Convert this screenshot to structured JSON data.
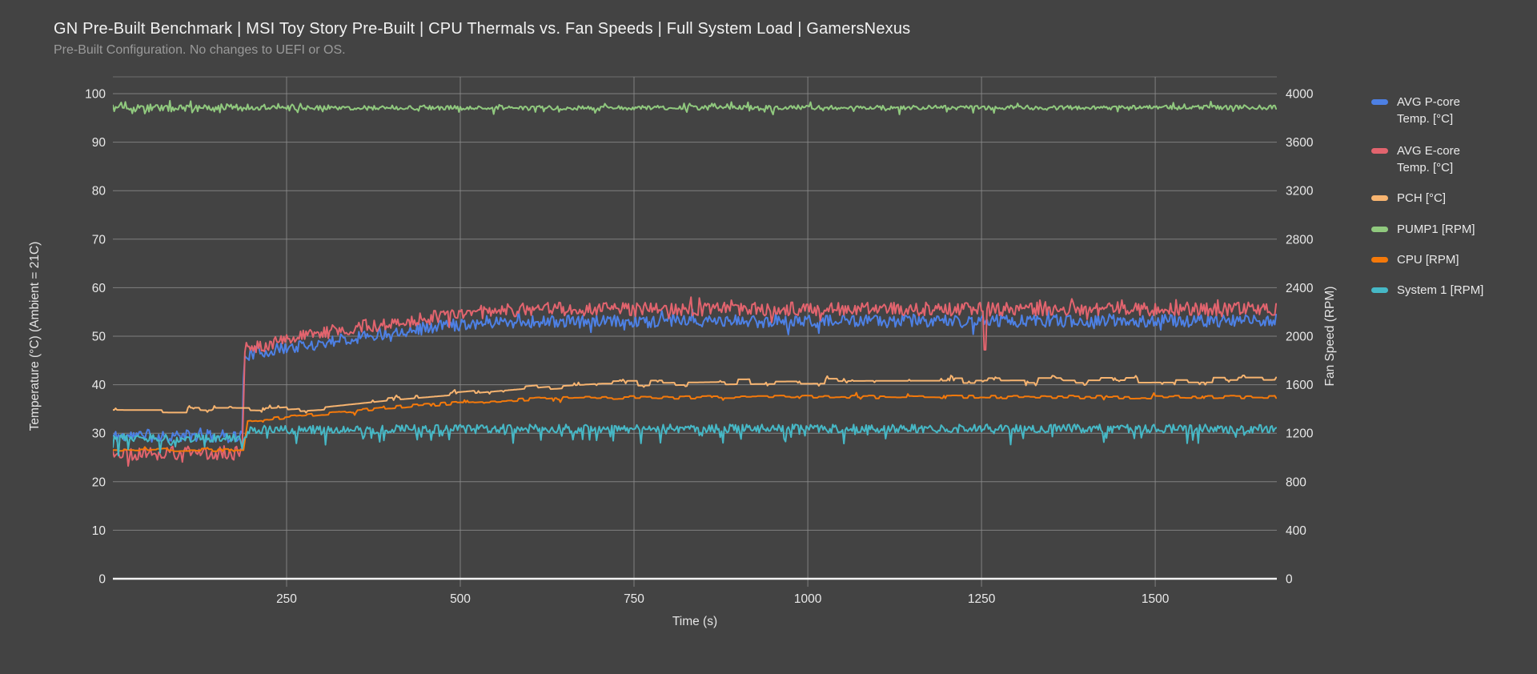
{
  "page": {
    "background_color": "#434343"
  },
  "chart_data": {
    "type": "line",
    "title": "GN Pre-Built Benchmark | MSI Toy Story Pre-Built | CPU Thermals vs. Fan Speeds | Full System Load | GamersNexus",
    "subtitle": "Pre-Built Configuration. No changes to UEFI or OS.",
    "xlabel": "Time (s)",
    "ylabel_left": "Temperature (°C) (Ambient = 21C)",
    "ylabel_right": "Fan Speed (RPM)",
    "x_range": [
      0,
      1675
    ],
    "x_ticks": [
      250,
      500,
      750,
      1000,
      1250,
      1500
    ],
    "y_left_range": [
      0,
      100
    ],
    "y_left_ticks": [
      0,
      10,
      20,
      30,
      40,
      50,
      60,
      70,
      80,
      90,
      100
    ],
    "y_right_range": [
      0,
      4000
    ],
    "y_right_ticks": [
      0,
      400,
      800,
      1200,
      1600,
      2000,
      2400,
      2800,
      3200,
      3600,
      4000
    ],
    "grid": true,
    "legend_position": "right",
    "style": {
      "grid_color": "#8f8f8f",
      "axis_line_color": "#f2f2f2",
      "tick_label_color": "#e9e9e9",
      "axis_title_color": "#e5e5e5"
    },
    "series": [
      {
        "name": "AVG P-core Temp. [°C]",
        "color": "#4d80e4",
        "axis": "left",
        "keypoints": [
          [
            0,
            29.4
          ],
          [
            186,
            29.4
          ],
          [
            189,
            46.2
          ],
          [
            240,
            47.3
          ],
          [
            300,
            48.6
          ],
          [
            360,
            50.0
          ],
          [
            420,
            51.2
          ],
          [
            480,
            52.2
          ],
          [
            540,
            53.0
          ],
          [
            620,
            53.0
          ],
          [
            1674,
            53.2
          ]
        ],
        "noise": 1.3,
        "spike_prob": 0.06,
        "spike_amp": 1.6,
        "seed": 11
      },
      {
        "name": "AVG E-core Temp. [°C]",
        "color": "#e2646e",
        "axis": "left",
        "keypoints": [
          [
            0,
            25.9
          ],
          [
            187,
            25.9
          ],
          [
            189,
            47.3
          ],
          [
            240,
            49.0
          ],
          [
            300,
            50.6
          ],
          [
            360,
            52.0
          ],
          [
            420,
            53.1
          ],
          [
            480,
            54.2
          ],
          [
            540,
            55.1
          ],
          [
            620,
            55.6
          ],
          [
            1674,
            55.6
          ]
        ],
        "noise": 1.4,
        "spike_prob": 0.06,
        "spike_amp": 1.7,
        "seed": 22,
        "events": [
          [
            1255,
            47.2
          ]
        ]
      },
      {
        "name": "PCH [°C]",
        "color": "#f7b470",
        "axis": "left",
        "keypoints": [
          [
            0,
            34.8
          ],
          [
            230,
            34.7
          ],
          [
            300,
            35.3
          ],
          [
            400,
            36.8
          ],
          [
            500,
            38.0
          ],
          [
            620,
            39.5
          ],
          [
            700,
            40.2
          ],
          [
            900,
            40.6
          ],
          [
            1100,
            40.8
          ],
          [
            1674,
            41.0
          ]
        ],
        "noise": 0.45,
        "hold": 9,
        "quantize": true,
        "spike_prob": 0.08,
        "spike_amp": 0.55,
        "seed": 33
      },
      {
        "name": "PUMP1 [RPM]",
        "color": "#90c97e",
        "axis": "right",
        "keypoints": [
          [
            0,
            3882
          ],
          [
            1674,
            3886
          ]
        ],
        "noise": 18,
        "spike_prob": 0.1,
        "spike_amp": 40,
        "seed": 44,
        "idle_until": 190,
        "idle_scale": 1.8
      },
      {
        "name": "CPU [RPM]",
        "color": "#f5790a",
        "axis": "right",
        "keypoints": [
          [
            0,
            1062
          ],
          [
            188,
            1062
          ],
          [
            194,
            1300
          ],
          [
            300,
            1360
          ],
          [
            420,
            1420
          ],
          [
            520,
            1460
          ],
          [
            650,
            1492
          ],
          [
            1000,
            1500
          ],
          [
            1674,
            1497
          ]
        ],
        "noise": 13,
        "hold": 4,
        "spike_prob": 0.04,
        "spike_amp": 24,
        "seed": 55
      },
      {
        "name": "System 1 [RPM]",
        "color": "#46b8c6",
        "axis": "right",
        "keypoints": [
          [
            0,
            1162
          ],
          [
            188,
            1162
          ],
          [
            196,
            1228
          ],
          [
            600,
            1238
          ],
          [
            1674,
            1238
          ]
        ],
        "noise": 35,
        "spike_prob": 0.07,
        "spike_amp": 115,
        "spike_mode": "down",
        "seed": 66
      }
    ]
  }
}
